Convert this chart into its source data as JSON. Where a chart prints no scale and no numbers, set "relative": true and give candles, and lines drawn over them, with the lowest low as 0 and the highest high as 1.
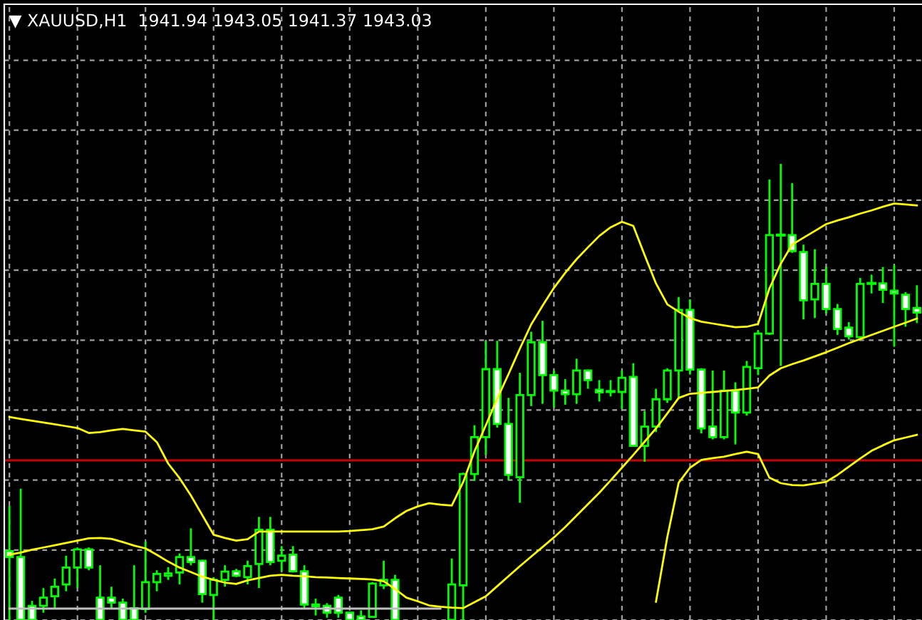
{
  "chart_data": {
    "type": "candlestick",
    "title": "▼ XAUUSD,H1  1941.94 1943.05 1941.37 1943.03",
    "relative": true,
    "tick_labels": false,
    "grid": true,
    "categories": [
      null,
      null,
      null,
      null,
      null,
      null,
      null,
      null,
      null,
      null,
      null,
      null,
      null,
      null,
      null,
      null,
      null,
      null,
      null,
      null,
      null,
      null,
      null,
      null,
      null,
      null,
      null,
      null,
      null,
      null,
      null,
      null,
      null,
      null,
      null,
      null,
      null,
      null,
      null,
      null,
      null,
      null,
      null,
      null,
      null,
      null,
      null,
      null,
      null,
      null,
      null,
      null,
      null,
      null,
      null,
      null,
      null,
      null,
      null,
      null,
      null,
      null,
      null,
      null,
      null,
      null,
      null,
      null,
      null,
      null,
      null,
      null,
      null,
      null,
      null,
      null,
      null,
      null,
      null,
      null,
      null
    ],
    "series": [
      {
        "color": "#00ff00",
        "ohlc": [
          [
            0.151,
            0.25,
            0,
            0.138
          ],
          [
            0.138,
            0.288,
            0,
            0
          ],
          [
            0.031,
            0.042,
            0,
            0
          ],
          [
            0.031,
            0.07,
            0.016,
            0.049
          ],
          [
            0.052,
            0.091,
            0.026,
            0.073
          ],
          [
            0.078,
            0.141,
            0.063,
            0.115
          ],
          [
            0.115,
            0.159,
            0.07,
            0.155
          ],
          [
            0.155,
            0.159,
            0.109,
            0.115
          ],
          [
            0.049,
            0.12,
            0,
            0
          ],
          [
            0.049,
            0.073,
            0.026,
            0.038
          ],
          [
            0.038,
            0.047,
            0,
            0
          ],
          [
            0.026,
            0.12,
            0,
            0
          ],
          [
            0.024,
            0.172,
            0.016,
            0.083
          ],
          [
            0.083,
            0.109,
            0.063,
            0.101
          ],
          [
            0.097,
            0.116,
            0.088,
            0.102
          ],
          [
            0.104,
            0.146,
            0.078,
            0.138
          ],
          [
            0.138,
            0.201,
            0.12,
            0.127
          ],
          [
            0.13,
            0.132,
            0.038,
            0.057
          ],
          [
            0.055,
            0.094,
            0,
            0.088
          ],
          [
            0.088,
            0.12,
            0.073,
            0.106
          ],
          [
            0.107,
            0.112,
            0.094,
            0.097
          ],
          [
            0.094,
            0.13,
            0.078,
            0.118
          ],
          [
            0.123,
            0.226,
            0.07,
            0.198
          ],
          [
            0.198,
            0.226,
            0.12,
            0.127
          ],
          [
            0.13,
            0.162,
            0.107,
            0.141
          ],
          [
            0.143,
            0.162,
            0.104,
            0.107
          ],
          [
            0.107,
            0.12,
            0.026,
            0.034
          ],
          [
            0.03,
            0.047,
            0.01,
            0.034
          ],
          [
            0.031,
            0.037,
            0.005,
            0.016
          ],
          [
            0.049,
            0.055,
            0.005,
            0.016
          ],
          [
            0.016,
            0.018,
            0,
            0
          ],
          [
            0.008,
            0.021,
            0,
            0
          ],
          [
            0.007,
            0.083,
            0.005,
            0.08
          ],
          [
            0.076,
            0.13,
            0.068,
            0.088
          ],
          [
            0.088,
            0.099,
            0,
            0
          ],
          null,
          null,
          null,
          null,
          [
            0,
            0.135,
            0,
            0.078
          ],
          [
            0.076,
            0.323,
            0,
            0.32
          ],
          [
            0.32,
            0.427,
            0.305,
            0.401
          ],
          [
            0.401,
            0.612,
            0.362,
            0.55
          ],
          [
            0.55,
            0.612,
            0.422,
            0.43
          ],
          [
            0.43,
            0.487,
            0.307,
            0.318
          ],
          [
            0.313,
            0.542,
            0.257,
            0.493
          ],
          [
            0.493,
            0.632,
            0.469,
            0.609
          ],
          [
            0.609,
            0.656,
            0.474,
            0.537
          ],
          [
            0.537,
            0.547,
            0.466,
            0.503
          ],
          [
            0.503,
            0.528,
            0.472,
            0.495
          ],
          [
            0.495,
            0.573,
            0.474,
            0.547
          ],
          [
            0.547,
            0.549,
            0.507,
            0.526
          ],
          [
            0.505,
            0.526,
            0.479,
            0.499
          ],
          [
            0.501,
            0.526,
            0.49,
            0.501
          ],
          [
            0.5,
            0.547,
            0.463,
            0.531
          ],
          [
            0.533,
            0.563,
            0.38,
            0.382
          ],
          [
            0.382,
            0.458,
            0.347,
            0.424
          ],
          [
            0.424,
            0.507,
            0.412,
            0.484
          ],
          [
            0.484,
            0.552,
            0.476,
            0.547
          ],
          [
            0.547,
            0.708,
            0.484,
            0.68
          ],
          [
            0.68,
            0.703,
            0.538,
            0.549
          ],
          [
            0.549,
            0.552,
            0.409,
            0.42
          ],
          [
            0.424,
            0.547,
            0.396,
            0.401
          ],
          [
            0.401,
            0.547,
            0.396,
            0.503
          ],
          [
            0.503,
            0.521,
            0.385,
            0.455
          ],
          [
            0.455,
            0.568,
            0.448,
            0.555
          ],
          [
            0.552,
            0.635,
            0.537,
            0.628
          ],
          [
            0.628,
            0.966,
            0.625,
            0.844
          ],
          [
            0.844,
            1,
            0.557,
            0.844
          ],
          [
            0.844,
            0.958,
            0.805,
            0.809
          ],
          [
            0.807,
            0.823,
            0.659,
            0.701
          ],
          [
            0.703,
            0.813,
            0.662,
            0.737
          ],
          [
            0.737,
            0.774,
            0.672,
            0.682
          ],
          [
            0.682,
            0.693,
            0.625,
            0.638
          ],
          [
            0.641,
            0.653,
            0.615,
            0.622
          ],
          [
            0.62,
            0.75,
            0.618,
            0.737
          ],
          [
            0.738,
            0.757,
            0.716,
            0.738
          ],
          [
            0.738,
            0.774,
            0.695,
            0.724
          ],
          [
            0.722,
            0.778,
            0.599,
            0.716
          ],
          [
            0.713,
            0.719,
            0.643,
            0.682
          ],
          [
            0.684,
            0.734,
            0.651,
            0.674
          ]
        ]
      },
      {
        "type": "line",
        "color": "#ffff00",
        "values": [
          0.445,
          0.441,
          0.437,
          0.433,
          0.429,
          0.425,
          0.421,
          0.41,
          0.412,
          0.416,
          0.419,
          0.416,
          0.413,
          0.39,
          0.343,
          0.311,
          0.273,
          0.23,
          0.187,
          0.18,
          0.174,
          0.177,
          0.194,
          0.194,
          0.194,
          0.194,
          0.194,
          0.194,
          0.194,
          0.194,
          0.195,
          0.197,
          0.199,
          0.205,
          0.223,
          0.239,
          0.249,
          0.256,
          0.253,
          0.251,
          0.302,
          0.37,
          0.427,
          0.485,
          0.539,
          0.595,
          0.648,
          0.689,
          0.728,
          0.761,
          0.791,
          0.817,
          0.842,
          0.861,
          0.873,
          0.864,
          0.8,
          0.738,
          0.692,
          0.676,
          0.662,
          0.654,
          0.65,
          0.646,
          0.642,
          0.643,
          0.649,
          0.727,
          0.781,
          0.823,
          0.838,
          0.853,
          0.868,
          0.876,
          0.883,
          0.891,
          0.898,
          0.906,
          0.913,
          0.911,
          0.909
        ]
      },
      {
        "type": "line",
        "color": "#ffff00",
        "values": [
          0.143,
          0.148,
          0.154,
          0.159,
          0.164,
          0.169,
          0.174,
          0.179,
          0.18,
          0.178,
          0.171,
          0.163,
          0.157,
          0.143,
          0.128,
          0.115,
          0.105,
          0.095,
          0.088,
          0.082,
          0.079,
          0.087,
          0.092,
          0.097,
          0.099,
          0.097,
          0.096,
          0.094,
          0.093,
          0.092,
          0.091,
          0.09,
          0.089,
          0.085,
          0.068,
          0.049,
          0.041,
          0.032,
          0.029,
          0.027,
          0.026,
          0.039,
          0.052,
          0.074,
          0.096,
          0.118,
          0.139,
          0.16,
          0.181,
          0.204,
          0.229,
          0.254,
          0.279,
          0.306,
          0.334,
          0.362,
          0.391,
          0.42,
          0.453,
          0.487,
          0.496,
          0.498,
          0.5,
          0.502,
          0.504,
          0.507,
          0.51,
          0.536,
          0.552,
          0.561,
          0.569,
          0.578,
          0.587,
          0.597,
          0.607,
          0.616,
          0.625,
          0.634,
          0.643,
          0.652,
          0.661
        ]
      },
      {
        "type": "line",
        "color": "#ffff00",
        "values": [
          null,
          null,
          null,
          null,
          null,
          null,
          null,
          null,
          null,
          null,
          null,
          null,
          null,
          null,
          null,
          null,
          null,
          null,
          null,
          null,
          null,
          null,
          null,
          null,
          null,
          null,
          null,
          null,
          null,
          null,
          null,
          null,
          null,
          null,
          null,
          null,
          null,
          null,
          null,
          null,
          null,
          null,
          null,
          null,
          null,
          null,
          null,
          null,
          null,
          null,
          null,
          null,
          null,
          null,
          null,
          null,
          null,
          0.04,
          0.182,
          0.301,
          0.334,
          0.351,
          0.355,
          0.358,
          0.364,
          0.369,
          0.364,
          0.312,
          0.3,
          0.296,
          0.295,
          0.299,
          0.303,
          0.318,
          0.336,
          0.354,
          0.371,
          0.383,
          0.394,
          0.4,
          0.406
        ]
      },
      {
        "type": "line",
        "color": "#c0c0c0",
        "values": [
          0.025,
          0.025,
          0.025,
          0.025,
          0.025,
          0.025,
          0.025,
          0.025,
          0.025,
          0.025,
          0.025,
          0.025,
          0.025,
          0.025,
          0.025,
          0.025,
          0.025,
          0.025,
          0.025,
          0.025,
          0.025,
          0.025,
          0.025,
          0.025,
          0.025,
          0.025,
          0.025,
          0.025,
          0.025,
          0.025,
          0.025,
          0.025,
          0.025,
          0.025,
          0.025,
          0.025,
          0.025,
          0.025,
          0.025,
          null,
          null,
          null,
          null,
          null,
          null,
          null,
          null,
          null,
          null,
          null,
          null,
          null,
          null,
          null,
          null,
          null,
          null,
          null,
          null,
          null,
          null,
          null,
          null,
          null,
          null,
          null,
          null,
          null,
          null,
          null,
          null,
          null,
          null,
          null,
          null,
          null,
          null,
          null,
          null,
          null,
          null
        ]
      }
    ],
    "ref_lines": [
      {
        "axis": "y",
        "value": 0.35,
        "color": "#c80000",
        "line_style": "solid"
      }
    ]
  }
}
